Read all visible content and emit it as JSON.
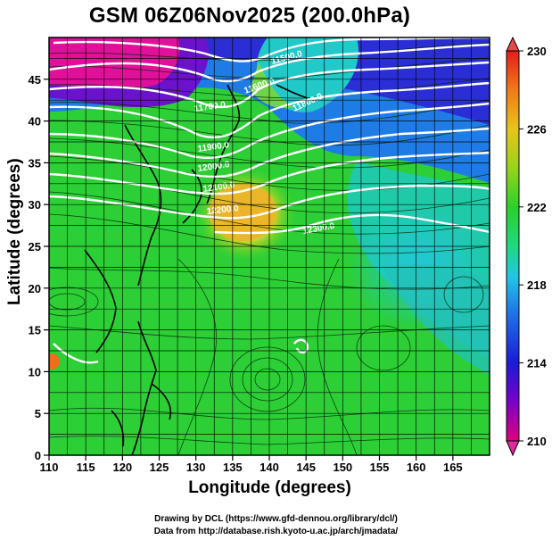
{
  "title": "GSM 06Z06Nov2025 (200.0hPa)",
  "axes": {
    "xlabel": "Longitude (degrees)",
    "ylabel": "Latitude (degrees)",
    "x_ticks": [
      "110",
      "115",
      "120",
      "125",
      "130",
      "135",
      "140",
      "145",
      "150",
      "155",
      "160",
      "165"
    ],
    "y_ticks": [
      "0",
      "5",
      "10",
      "15",
      "20",
      "25",
      "30",
      "35",
      "40",
      "45"
    ],
    "xlim": [
      110,
      170
    ],
    "ylim": [
      0,
      50
    ]
  },
  "colorbar": {
    "ticks": [
      "230",
      "226",
      "222",
      "218",
      "214",
      "210"
    ],
    "range": [
      210,
      230
    ],
    "colors": [
      "#e0007f",
      "#7a00c8",
      "#1b1bd6",
      "#1e6ee6",
      "#22c5e6",
      "#20d880",
      "#2ad12a",
      "#9ad31a",
      "#e8c41a",
      "#f07a1a",
      "#e41c1c"
    ]
  },
  "contour_labels": [
    "11500.0",
    "11600.0",
    "11700.0",
    "11800.0",
    "11900.0",
    "12000.0",
    "12100.0",
    "12200.0",
    "12300.0"
  ],
  "credits": {
    "line1": "Drawing by DCL (https://www.gfd-dennou.org/library/dcl/)",
    "line2": "Data from http://database.rish.kyoto-u.ac.jp/arch/jmadata/"
  },
  "chart_data": {
    "type": "heatmap",
    "title": "GSM 06Z06Nov2025 (200.0hPa)",
    "xlabel": "Longitude (degrees)",
    "ylabel": "Latitude (degrees)",
    "xlim": [
      110,
      170
    ],
    "ylim": [
      0,
      50
    ],
    "colorbar_range": [
      210,
      230
    ],
    "colorbar_ticks": [
      210,
      214,
      218,
      222,
      226,
      230
    ],
    "grid": true,
    "legend": "right"
  }
}
